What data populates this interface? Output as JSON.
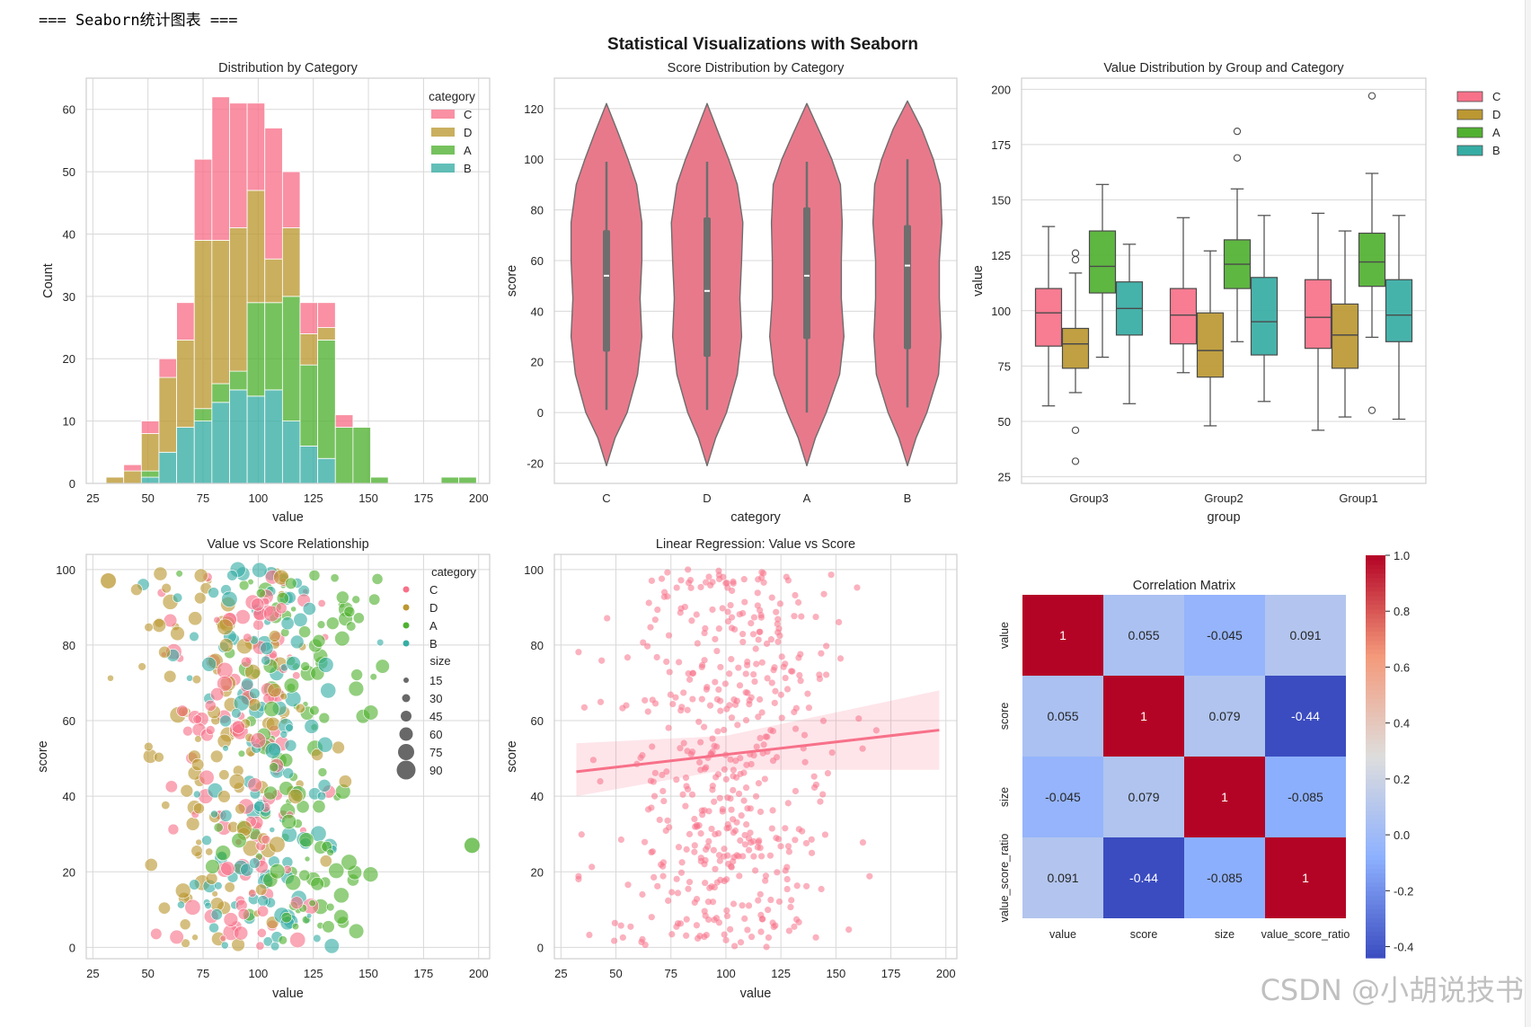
{
  "console_line": "=== Seaborn统计图表 ===",
  "watermark": "CSDN @小胡说技书",
  "suptitle": "Statistical Visualizations with Seaborn",
  "palette": {
    "C": "#f77189",
    "D": "#bb9832",
    "A": "#50b131",
    "B": "#36ada4"
  },
  "chart_data": [
    {
      "type": "bar",
      "subtype": "stacked-histogram",
      "title": "Distribution by Category",
      "xlabel": "value",
      "ylabel": "Count",
      "xlim": [
        22,
        205
      ],
      "ylim": [
        0,
        65
      ],
      "xticks": [
        25,
        50,
        75,
        100,
        125,
        150,
        175,
        200
      ],
      "yticks": [
        0,
        10,
        20,
        30,
        40,
        50,
        60
      ],
      "legend_title": "category",
      "legend_position": "top-right",
      "bins": [
        {
          "x0": 31,
          "x1": 39,
          "B": 0,
          "A": 0,
          "D": 1,
          "C": 0
        },
        {
          "x0": 39,
          "x1": 47,
          "B": 0,
          "A": 0,
          "D": 2,
          "C": 1
        },
        {
          "x0": 47,
          "x1": 55,
          "B": 1,
          "A": 1,
          "D": 6,
          "C": 2
        },
        {
          "x0": 55,
          "x1": 63,
          "B": 5,
          "A": 0,
          "D": 12,
          "C": 3
        },
        {
          "x0": 63,
          "x1": 71,
          "B": 9,
          "A": 0,
          "D": 14,
          "C": 6
        },
        {
          "x0": 71,
          "x1": 79,
          "B": 10,
          "A": 2,
          "D": 27,
          "C": 13
        },
        {
          "x0": 79,
          "x1": 87,
          "B": 13,
          "A": 3,
          "D": 23,
          "C": 23
        },
        {
          "x0": 87,
          "x1": 95,
          "B": 15,
          "A": 3,
          "D": 23,
          "C": 20
        },
        {
          "x0": 95,
          "x1": 103,
          "B": 14,
          "A": 15,
          "D": 18,
          "C": 14
        },
        {
          "x0": 103,
          "x1": 111,
          "B": 15,
          "A": 14,
          "D": 7,
          "C": 21
        },
        {
          "x0": 111,
          "x1": 119,
          "B": 10,
          "A": 20,
          "D": 11,
          "C": 9
        },
        {
          "x0": 119,
          "x1": 127,
          "B": 6,
          "A": 13,
          "D": 5,
          "C": 5
        },
        {
          "x0": 127,
          "x1": 135,
          "B": 4,
          "A": 19,
          "D": 2,
          "C": 4
        },
        {
          "x0": 135,
          "x1": 143,
          "B": 0,
          "A": 9,
          "D": 0,
          "C": 2
        },
        {
          "x0": 143,
          "x1": 151,
          "B": 0,
          "A": 9,
          "D": 0,
          "C": 0
        },
        {
          "x0": 151,
          "x1": 159,
          "B": 0,
          "A": 1,
          "D": 0,
          "C": 0
        },
        {
          "x0": 159,
          "x1": 167,
          "B": 0,
          "A": 0,
          "D": 0,
          "C": 0
        },
        {
          "x0": 167,
          "x1": 175,
          "B": 0,
          "A": 0,
          "D": 0,
          "C": 0
        },
        {
          "x0": 175,
          "x1": 183,
          "B": 0,
          "A": 0,
          "D": 0,
          "C": 0
        },
        {
          "x0": 183,
          "x1": 191,
          "B": 0,
          "A": 1,
          "D": 0,
          "C": 0
        },
        {
          "x0": 191,
          "x1": 199,
          "B": 0,
          "A": 1,
          "D": 0,
          "C": 0
        }
      ],
      "series": [
        {
          "name": "C",
          "color": "#f77189"
        },
        {
          "name": "D",
          "color": "#bb9832"
        },
        {
          "name": "A",
          "color": "#50b131"
        },
        {
          "name": "B",
          "color": "#36ada4"
        }
      ]
    },
    {
      "type": "violin",
      "title": "Score Distribution by Category",
      "xlabel": "category",
      "ylabel": "score",
      "ylim": [
        -28,
        132
      ],
      "yticks": [
        -20,
        0,
        20,
        40,
        60,
        80,
        100,
        120
      ],
      "categories": [
        "C",
        "D",
        "A",
        "B"
      ],
      "color": "#e8798b",
      "violins": [
        {
          "name": "C",
          "q1": 24,
          "median": 54,
          "q3": 72,
          "min": 1,
          "max": 99,
          "profile": [
            [
              -21,
              0.0
            ],
            [
              -10,
              0.2
            ],
            [
              0,
              0.48
            ],
            [
              15,
              0.72
            ],
            [
              30,
              0.82
            ],
            [
              45,
              0.78
            ],
            [
              60,
              0.82
            ],
            [
              75,
              0.82
            ],
            [
              90,
              0.7
            ],
            [
              100,
              0.5
            ],
            [
              110,
              0.28
            ],
            [
              122,
              0.0
            ]
          ]
        },
        {
          "name": "D",
          "q1": 22,
          "median": 48,
          "q3": 77,
          "min": 1,
          "max": 99,
          "profile": [
            [
              -21,
              0.0
            ],
            [
              -10,
              0.2
            ],
            [
              0,
              0.45
            ],
            [
              15,
              0.7
            ],
            [
              30,
              0.8
            ],
            [
              45,
              0.76
            ],
            [
              60,
              0.8
            ],
            [
              75,
              0.83
            ],
            [
              90,
              0.7
            ],
            [
              100,
              0.5
            ],
            [
              110,
              0.27
            ],
            [
              122,
              0.0
            ]
          ]
        },
        {
          "name": "A",
          "q1": 29,
          "median": 54,
          "q3": 81,
          "min": 0,
          "max": 99,
          "profile": [
            [
              -21,
              0.0
            ],
            [
              -10,
              0.2
            ],
            [
              0,
              0.45
            ],
            [
              15,
              0.76
            ],
            [
              30,
              0.86
            ],
            [
              45,
              0.8
            ],
            [
              60,
              0.8
            ],
            [
              75,
              0.82
            ],
            [
              90,
              0.78
            ],
            [
              100,
              0.58
            ],
            [
              110,
              0.32
            ],
            [
              122,
              0.0
            ]
          ]
        },
        {
          "name": "B",
          "q1": 25,
          "median": 58,
          "q3": 74,
          "min": 2,
          "max": 100,
          "profile": [
            [
              -21,
              0.0
            ],
            [
              -10,
              0.2
            ],
            [
              0,
              0.45
            ],
            [
              15,
              0.72
            ],
            [
              30,
              0.78
            ],
            [
              45,
              0.74
            ],
            [
              60,
              0.74
            ],
            [
              75,
              0.8
            ],
            [
              90,
              0.76
            ],
            [
              100,
              0.6
            ],
            [
              112,
              0.33
            ],
            [
              123,
              0.0
            ]
          ]
        }
      ]
    },
    {
      "type": "box",
      "title": "Value Distribution by Group and Category",
      "xlabel": "group",
      "ylabel": "value",
      "ylim": [
        22,
        205
      ],
      "yticks": [
        25,
        50,
        75,
        100,
        125,
        150,
        175,
        200
      ],
      "groups": [
        "Group3",
        "Group2",
        "Group1"
      ],
      "hue_order": [
        "C",
        "D",
        "A",
        "B"
      ],
      "legend_position": "outside-right",
      "boxes": [
        {
          "group": "Group3",
          "hue": "C",
          "whislo": 57,
          "q1": 84,
          "med": 99,
          "q3": 110,
          "whishi": 138,
          "fliers": []
        },
        {
          "group": "Group3",
          "hue": "D",
          "whislo": 63,
          "q1": 74,
          "med": 85,
          "q3": 92,
          "whishi": 117,
          "fliers": [
            123,
            126,
            46,
            32
          ]
        },
        {
          "group": "Group3",
          "hue": "A",
          "whislo": 79,
          "q1": 108,
          "med": 120,
          "q3": 136,
          "whishi": 157,
          "fliers": []
        },
        {
          "group": "Group3",
          "hue": "B",
          "whislo": 58,
          "q1": 89,
          "med": 101,
          "q3": 113,
          "whishi": 130,
          "fliers": []
        },
        {
          "group": "Group2",
          "hue": "C",
          "whislo": 72,
          "q1": 85,
          "med": 98,
          "q3": 110,
          "whishi": 142,
          "fliers": []
        },
        {
          "group": "Group2",
          "hue": "D",
          "whislo": 48,
          "q1": 70,
          "med": 82,
          "q3": 99,
          "whishi": 127,
          "fliers": []
        },
        {
          "group": "Group2",
          "hue": "A",
          "whislo": 86,
          "q1": 110,
          "med": 121,
          "q3": 132,
          "whishi": 155,
          "fliers": [
            169,
            181
          ]
        },
        {
          "group": "Group2",
          "hue": "B",
          "whislo": 59,
          "q1": 80,
          "med": 95,
          "q3": 115,
          "whishi": 143,
          "fliers": []
        },
        {
          "group": "Group1",
          "hue": "C",
          "whislo": 46,
          "q1": 83,
          "med": 97,
          "q3": 114,
          "whishi": 144,
          "fliers": []
        },
        {
          "group": "Group1",
          "hue": "D",
          "whislo": 52,
          "q1": 74,
          "med": 89,
          "q3": 103,
          "whishi": 136,
          "fliers": []
        },
        {
          "group": "Group1",
          "hue": "A",
          "whislo": 88,
          "q1": 111,
          "med": 122,
          "q3": 135,
          "whishi": 162,
          "fliers": [
            197,
            55
          ]
        },
        {
          "group": "Group1",
          "hue": "B",
          "whislo": 51,
          "q1": 86,
          "med": 98,
          "q3": 114,
          "whishi": 143,
          "fliers": []
        }
      ]
    },
    {
      "type": "scatter",
      "title": "Value vs Score Relationship",
      "xlabel": "value",
      "ylabel": "score",
      "xlim": [
        22,
        205
      ],
      "ylim": [
        -3,
        104
      ],
      "xticks": [
        25,
        50,
        75,
        100,
        125,
        150,
        175,
        200
      ],
      "yticks": [
        0,
        20,
        40,
        60,
        80,
        100
      ],
      "legend_title": "category",
      "size_title": "size",
      "size_levels": [
        15,
        30,
        45,
        60,
        75,
        90
      ],
      "legend_position": "top-right",
      "points_per_category": 125,
      "notable_points": [
        {
          "x": 197,
          "y": 27,
          "category": "A"
        },
        {
          "x": 32,
          "y": 97,
          "category": "D"
        }
      ]
    },
    {
      "type": "scatter",
      "subtype": "regression",
      "title": "Linear Regression: Value vs Score",
      "xlabel": "value",
      "ylabel": "score",
      "xlim": [
        22,
        205
      ],
      "ylim": [
        -3,
        104
      ],
      "xticks": [
        25,
        50,
        75,
        100,
        125,
        150,
        175,
        200
      ],
      "yticks": [
        0,
        20,
        40,
        60,
        80,
        100
      ],
      "n_points": 500,
      "fit_line": {
        "x": [
          32,
          197
        ],
        "y": [
          46.5,
          57.5
        ]
      },
      "ci_band": {
        "x": [
          32,
          100,
          197
        ],
        "lower": [
          40,
          47,
          47
        ],
        "upper": [
          54,
          56,
          68
        ]
      },
      "color": "#f77189"
    },
    {
      "type": "heatmap",
      "title": "Correlation Matrix",
      "labels": [
        "value",
        "score",
        "size",
        "value_score_ratio"
      ],
      "values": [
        [
          1,
          0.055,
          -0.045,
          0.091
        ],
        [
          0.055,
          1,
          0.079,
          -0.44
        ],
        [
          -0.045,
          0.079,
          1,
          -0.085
        ],
        [
          0.091,
          -0.44,
          -0.085,
          1
        ]
      ],
      "display": [
        [
          "1",
          "0.055",
          "-0.045",
          "0.091"
        ],
        [
          "0.055",
          "1",
          "0.079",
          "-0.44"
        ],
        [
          "-0.045",
          "0.079",
          "1",
          "-0.085"
        ],
        [
          "0.091",
          "-0.44",
          "-0.085",
          "1"
        ]
      ],
      "colormap": "coolwarm",
      "vmin": -0.44,
      "vmax": 1.0,
      "colorbar_ticks": [
        {
          "v": 1.0,
          "label": "1.0"
        },
        {
          "v": 0.8,
          "label": "0.8"
        },
        {
          "v": 0.6,
          "label": "0.6"
        },
        {
          "v": 0.4,
          "label": "0.4"
        },
        {
          "v": 0.2,
          "label": "0.2"
        },
        {
          "v": 0.0,
          "label": "0.0"
        },
        {
          "v": -0.2,
          "label": "-0.2"
        },
        {
          "v": -0.4,
          "label": "-0.4"
        }
      ]
    }
  ]
}
